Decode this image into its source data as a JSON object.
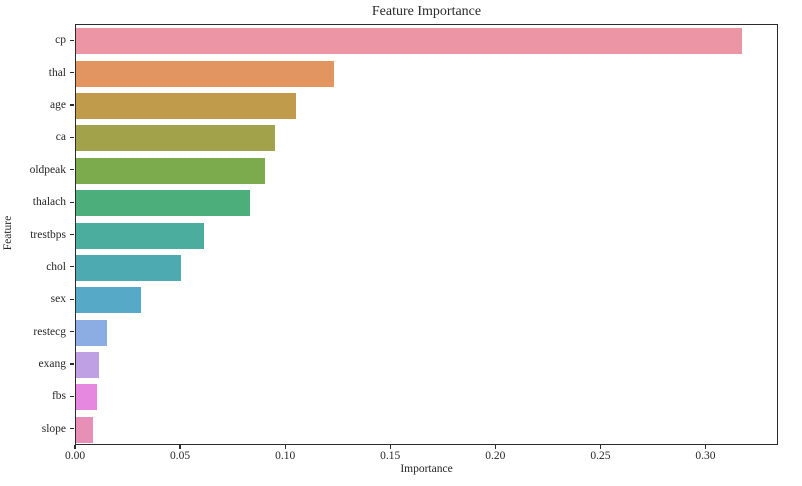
{
  "chart_data": {
    "type": "bar",
    "orientation": "horizontal",
    "title": "Feature Importance",
    "xlabel": "Importance",
    "ylabel": "Feature",
    "categories": [
      "cp",
      "thal",
      "age",
      "ca",
      "oldpeak",
      "thalach",
      "trestbps",
      "chol",
      "sex",
      "restecg",
      "exang",
      "fbs",
      "slope"
    ],
    "values": [
      0.318,
      0.123,
      0.105,
      0.095,
      0.09,
      0.083,
      0.061,
      0.05,
      0.031,
      0.015,
      0.011,
      0.01,
      0.008
    ],
    "bar_colors": [
      "#ec95a4",
      "#e29561",
      "#bf9b4b",
      "#a2a24a",
      "#7bab4c",
      "#4bae7b",
      "#4bad9d",
      "#4daab0",
      "#56a9c7",
      "#8cade4",
      "#bfa0e4",
      "#e687e0",
      "#e78fb7"
    ],
    "xlim": [
      0,
      0.3345
    ],
    "xticks": [
      0.0,
      0.05,
      0.1,
      0.15,
      0.2,
      0.25,
      0.3
    ],
    "xtick_labels": [
      "0.00",
      "0.05",
      "0.10",
      "0.15",
      "0.20",
      "0.25",
      "0.30"
    ],
    "grid": false,
    "legend": null,
    "axis_color": "#2b2b2b",
    "text_color": "#262626",
    "background": "#ffffff"
  }
}
